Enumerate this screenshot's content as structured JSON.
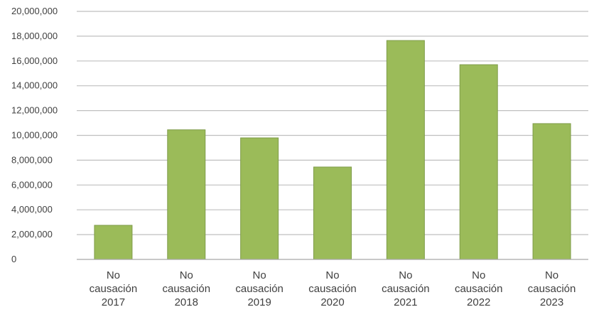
{
  "chart_data": {
    "type": "bar",
    "categories": [
      [
        "No",
        "causación",
        "2017"
      ],
      [
        "No",
        "causación",
        "2018"
      ],
      [
        "No",
        "causación",
        "2019"
      ],
      [
        "No",
        "causación",
        "2020"
      ],
      [
        "No",
        "causación",
        "2021"
      ],
      [
        "No",
        "causación",
        "2022"
      ],
      [
        "No",
        "causación",
        "2023"
      ]
    ],
    "values": [
      2750000,
      10450000,
      9800000,
      7450000,
      17650000,
      15700000,
      10950000
    ],
    "ylim": [
      0,
      20000000
    ],
    "yticks": [
      {
        "value": 0,
        "label": "0"
      },
      {
        "value": 2000000,
        "label": "2,000,000"
      },
      {
        "value": 4000000,
        "label": "4,000,000"
      },
      {
        "value": 6000000,
        "label": "6,000,000"
      },
      {
        "value": 8000000,
        "label": "8,000,000"
      },
      {
        "value": 10000000,
        "label": "10,000,000"
      },
      {
        "value": 12000000,
        "label": "12,000,000"
      },
      {
        "value": 14000000,
        "label": "14,000,000"
      },
      {
        "value": 16000000,
        "label": "16,000,000"
      },
      {
        "value": 18000000,
        "label": "18,000,000"
      },
      {
        "value": 20000000,
        "label": "20,000,000"
      }
    ],
    "bar_color": "#9bbb59",
    "grid": true,
    "legend": "none"
  }
}
